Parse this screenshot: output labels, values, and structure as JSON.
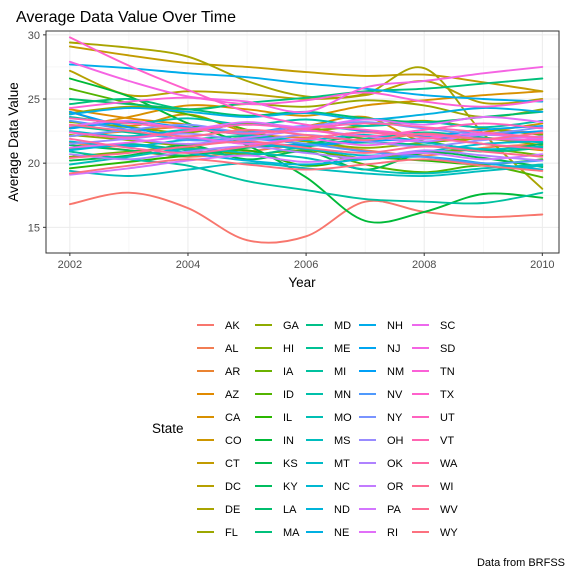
{
  "chart_data": {
    "type": "line",
    "title": "Average Data Value Over Time",
    "xlabel": "Year",
    "ylabel": "Average Data Value",
    "caption": "Data from BRFSS",
    "legend_title": "State",
    "legend_position": "bottom",
    "grid": true,
    "xlim": [
      2002,
      2010
    ],
    "ylim": [
      13,
      30.3
    ],
    "x_ticks": [
      "2002",
      "2004",
      "2006",
      "2008",
      "2010"
    ],
    "y_ticks": [
      "15",
      "20",
      "25",
      "30"
    ],
    "x": [
      2002,
      2003,
      2004,
      2005,
      2006,
      2007,
      2008,
      2009,
      2010
    ],
    "series": [
      {
        "name": "AK",
        "color": "#F8766D",
        "values": [
          16.8,
          17.7,
          16.5,
          14.0,
          14.3,
          17.0,
          16.2,
          15.8,
          16.0
        ]
      },
      {
        "name": "AL",
        "color": "#F27D53",
        "values": [
          21.6,
          21.0,
          20.5,
          20.9,
          21.4,
          21.0,
          20.6,
          21.2,
          21.5
        ]
      },
      {
        "name": "AR",
        "color": "#EA8331",
        "values": [
          22.1,
          22.5,
          22.8,
          22.3,
          22.0,
          22.4,
          22.1,
          22.6,
          22.3
        ]
      },
      {
        "name": "AZ",
        "color": "#E18A00",
        "values": [
          24.2,
          23.5,
          23.0,
          22.4,
          22.8,
          21.9,
          22.2,
          21.5,
          21.0
        ]
      },
      {
        "name": "CA",
        "color": "#D89000",
        "values": [
          22.8,
          23.6,
          24.5,
          24.2,
          23.7,
          24.5,
          24.9,
          25.3,
          25.6
        ]
      },
      {
        "name": "CO",
        "color": "#CD9600",
        "values": [
          24.0,
          22.9,
          23.8,
          22.5,
          22.9,
          23.6,
          21.7,
          22.4,
          23.1
        ]
      },
      {
        "name": "CT",
        "color": "#C29B00",
        "values": [
          29.1,
          28.4,
          27.8,
          27.5,
          27.1,
          26.8,
          26.9,
          26.3,
          25.6
        ]
      },
      {
        "name": "DC",
        "color": "#B6A000",
        "values": [
          27.2,
          25.3,
          25.6,
          25.4,
          25.0,
          25.3,
          26.4,
          24.7,
          25.0
        ]
      },
      {
        "name": "DE",
        "color": "#A9A400",
        "values": [
          29.4,
          29.0,
          28.3,
          26.4,
          25.2,
          25.4,
          27.4,
          22.3,
          18.0
        ]
      },
      {
        "name": "FL",
        "color": "#9CA700",
        "values": [
          23.9,
          24.4,
          24.2,
          24.6,
          24.4,
          24.9,
          24.5,
          23.6,
          24.2
        ]
      },
      {
        "name": "GA",
        "color": "#8EAB00",
        "values": [
          22.2,
          21.8,
          21.4,
          22.0,
          21.7,
          21.2,
          21.6,
          21.9,
          21.4
        ]
      },
      {
        "name": "HI",
        "color": "#7FAE00",
        "values": [
          23.2,
          22.8,
          22.4,
          23.1,
          22.6,
          22.9,
          23.3,
          22.7,
          22.2
        ]
      },
      {
        "name": "IA",
        "color": "#6BB100",
        "values": [
          20.5,
          20.9,
          21.2,
          20.7,
          21.0,
          20.4,
          20.8,
          21.1,
          20.6
        ]
      },
      {
        "name": "ID",
        "color": "#53B400",
        "values": [
          25.8,
          24.7,
          23.8,
          22.6,
          21.3,
          19.9,
          19.3,
          19.8,
          18.9
        ]
      },
      {
        "name": "IL",
        "color": "#2AB700",
        "values": [
          19.6,
          20.1,
          20.6,
          21.0,
          19.8,
          20.4,
          20.2,
          19.9,
          20.3
        ]
      },
      {
        "name": "IN",
        "color": "#00BA38",
        "values": [
          26.6,
          25.2,
          23.1,
          21.4,
          18.9,
          15.5,
          16.2,
          17.6,
          17.3
        ]
      },
      {
        "name": "KS",
        "color": "#00BB4E",
        "values": [
          20.2,
          20.6,
          21.4,
          20.3,
          20.9,
          19.5,
          20.8,
          20.4,
          19.7
        ]
      },
      {
        "name": "KY",
        "color": "#00BD5F",
        "values": [
          21.4,
          21.0,
          20.6,
          21.2,
          21.5,
          22.1,
          21.7,
          21.0,
          21.5
        ]
      },
      {
        "name": "LA",
        "color": "#00BE6E",
        "values": [
          25.0,
          24.6,
          24.2,
          23.7,
          24.0,
          23.5,
          23.2,
          23.6,
          24.0
        ]
      },
      {
        "name": "MA",
        "color": "#00C07B",
        "values": [
          24.6,
          25.0,
          24.2,
          24.7,
          25.1,
          25.6,
          25.8,
          26.2,
          26.6
        ]
      },
      {
        "name": "MD",
        "color": "#00C088",
        "values": [
          21.1,
          21.5,
          21.0,
          20.6,
          21.3,
          21.6,
          21.4,
          20.9,
          21.2
        ]
      },
      {
        "name": "ME",
        "color": "#00C194",
        "values": [
          22.9,
          22.4,
          21.9,
          22.1,
          21.5,
          21.9,
          22.4,
          22.0,
          21.6
        ]
      },
      {
        "name": "MI",
        "color": "#00C19F",
        "values": [
          20.9,
          20.3,
          19.8,
          18.6,
          17.9,
          17.2,
          17.0,
          16.9,
          17.7
        ]
      },
      {
        "name": "MN",
        "color": "#00C0AA",
        "values": [
          23.6,
          23.1,
          23.5,
          23.0,
          23.4,
          22.9,
          23.2,
          22.8,
          23.3
        ]
      },
      {
        "name": "MO",
        "color": "#00BFB4",
        "values": [
          19.9,
          20.5,
          21.1,
          20.8,
          20.4,
          19.5,
          19.2,
          19.6,
          19.9
        ]
      },
      {
        "name": "MS",
        "color": "#00BDBE",
        "values": [
          19.4,
          19.0,
          19.5,
          20.0,
          19.6,
          19.2,
          19.0,
          19.4,
          19.8
        ]
      },
      {
        "name": "MT",
        "color": "#00BBC8",
        "values": [
          22.5,
          22.1,
          22.6,
          22.2,
          21.8,
          22.2,
          21.6,
          21.1,
          21.3
        ]
      },
      {
        "name": "NC",
        "color": "#00B8D1",
        "values": [
          21.7,
          21.3,
          21.8,
          21.5,
          21.1,
          20.6,
          20.9,
          21.5,
          21.7
        ]
      },
      {
        "name": "ND",
        "color": "#00B4DA",
        "values": [
          21.0,
          21.4,
          20.8,
          20.2,
          19.9,
          20.3,
          20.5,
          20.0,
          19.5
        ]
      },
      {
        "name": "NE",
        "color": "#00B0E2",
        "values": [
          23.8,
          24.3,
          24.0,
          23.6,
          23.9,
          23.4,
          23.8,
          24.3,
          24.0
        ]
      },
      {
        "name": "NH",
        "color": "#00ACEA",
        "values": [
          27.7,
          27.4,
          27.0,
          26.7,
          26.2,
          25.8,
          25.3,
          25.0,
          24.8
        ]
      },
      {
        "name": "NJ",
        "color": "#00A6F1",
        "values": [
          22.7,
          23.2,
          22.8,
          22.4,
          22.9,
          22.5,
          22.1,
          22.6,
          22.9
        ]
      },
      {
        "name": "NM",
        "color": "#00A0F7",
        "values": [
          24.0,
          22.8,
          22.0,
          21.6,
          21.4,
          21.7,
          21.9,
          22.2,
          22.5
        ]
      },
      {
        "name": "NV",
        "color": "#4F99FC",
        "values": [
          23.3,
          22.6,
          21.8,
          21.9,
          21.5,
          20.9,
          20.5,
          20.0,
          20.2
        ]
      },
      {
        "name": "NY",
        "color": "#7993FF",
        "values": [
          22.1,
          22.6,
          23.0,
          22.4,
          22.9,
          23.2,
          22.7,
          22.3,
          22.8
        ]
      },
      {
        "name": "OH",
        "color": "#988BFF",
        "values": [
          21.5,
          21.9,
          22.3,
          21.8,
          22.2,
          21.7,
          21.3,
          21.8,
          22.1
        ]
      },
      {
        "name": "OK",
        "color": "#AF82FF",
        "values": [
          20.7,
          20.3,
          20.9,
          21.3,
          20.8,
          20.4,
          21.0,
          20.6,
          20.2
        ]
      },
      {
        "name": "OR",
        "color": "#C27BFF",
        "values": [
          22.4,
          21.9,
          21.5,
          22.0,
          22.5,
          22.1,
          21.7,
          22.2,
          21.9
        ]
      },
      {
        "name": "PA",
        "color": "#D376FF",
        "values": [
          19.1,
          19.6,
          20.2,
          20.6,
          20.1,
          20.5,
          20.8,
          20.3,
          20.7
        ]
      },
      {
        "name": "RI",
        "color": "#E16FF8",
        "values": [
          22.9,
          23.3,
          22.7,
          23.2,
          22.8,
          23.4,
          23.0,
          23.6,
          23.2
        ]
      },
      {
        "name": "SC",
        "color": "#ED68ED",
        "values": [
          21.2,
          21.6,
          22.0,
          21.5,
          21.9,
          21.4,
          21.9,
          22.3,
          21.8
        ]
      },
      {
        "name": "SD",
        "color": "#F564E3",
        "values": [
          27.9,
          26.4,
          25.2,
          24.8,
          24.0,
          25.9,
          26.4,
          27.0,
          27.5
        ]
      },
      {
        "name": "TN",
        "color": "#FB61D7",
        "values": [
          24.3,
          24.8,
          25.1,
          24.6,
          24.9,
          25.5,
          24.8,
          24.4,
          24.9
        ]
      },
      {
        "name": "TX",
        "color": "#FF61CC",
        "values": [
          29.8,
          27.6,
          25.7,
          24.0,
          23.0,
          22.6,
          22.2,
          21.9,
          21.8
        ]
      },
      {
        "name": "UT",
        "color": "#FF62BF",
        "values": [
          22.4,
          22.0,
          22.5,
          23.0,
          22.6,
          22.1,
          22.6,
          23.1,
          22.7
        ]
      },
      {
        "name": "VT",
        "color": "#FF65B2",
        "values": [
          23.5,
          23.1,
          22.7,
          22.3,
          22.7,
          23.1,
          22.8,
          22.4,
          22.0
        ]
      },
      {
        "name": "WA",
        "color": "#FF68A1",
        "values": [
          21.9,
          21.2,
          20.8,
          21.3,
          21.9,
          22.4,
          22.0,
          21.5,
          21.1
        ]
      },
      {
        "name": "WI",
        "color": "#FF6C91",
        "values": [
          20.4,
          20.8,
          21.3,
          21.7,
          21.2,
          20.8,
          21.3,
          20.9,
          20.5
        ]
      },
      {
        "name": "WV",
        "color": "#FF6C91",
        "values": [
          23.0,
          22.5,
          22.1,
          22.6,
          22.2,
          21.8,
          22.3,
          21.9,
          22.4
        ]
      },
      {
        "name": "WY",
        "color": "#FC717F",
        "values": [
          19.2,
          19.8,
          20.3,
          19.9,
          19.5,
          19.9,
          20.3,
          19.8,
          19.4
        ]
      }
    ]
  }
}
